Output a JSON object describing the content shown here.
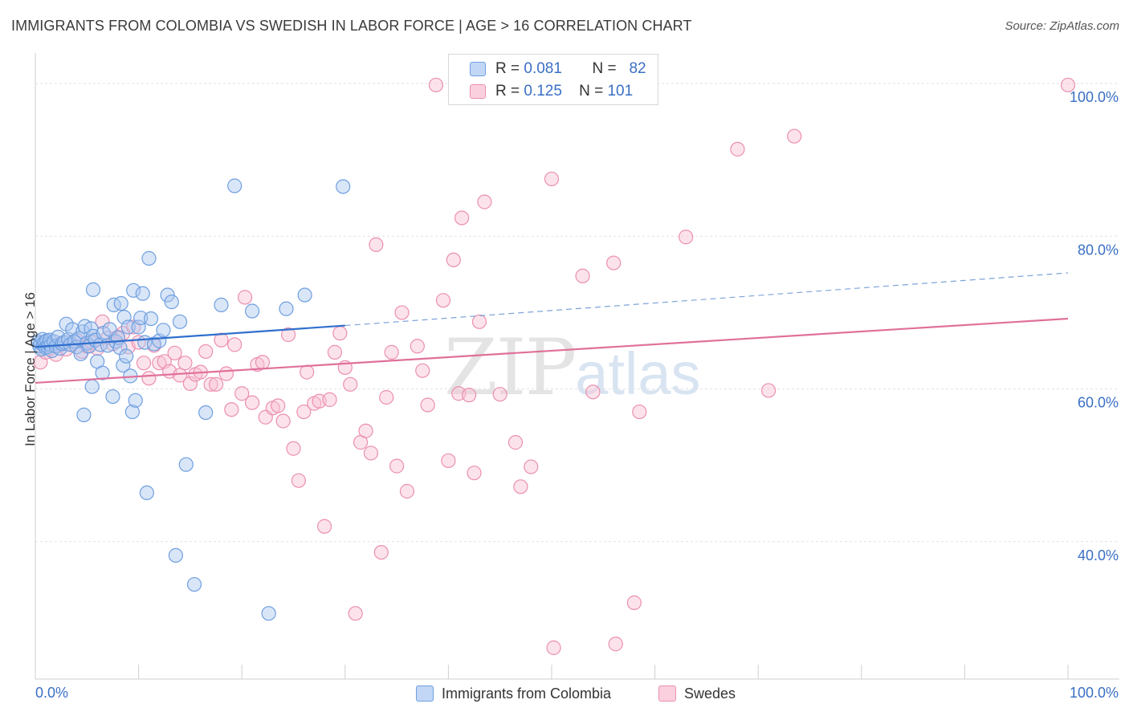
{
  "title": "IMMIGRANTS FROM COLOMBIA VS SWEDISH IN LABOR FORCE | AGE > 16 CORRELATION CHART",
  "source": "Source: ZipAtlas.com",
  "watermark": {
    "zip": "ZIP",
    "atlas": "atlas"
  },
  "legend": {
    "r_label": "R =",
    "n_label": "N =",
    "series": [
      {
        "r": "0.081",
        "n": "82",
        "fill": "#aac8f0",
        "stroke": "#6f9fe0"
      },
      {
        "r": "0.125",
        "n": "101",
        "fill": "#f8c0d2",
        "stroke": "#eb8fb0"
      }
    ]
  },
  "bottom_legend": [
    "Immigrants from Colombia",
    "Swedes"
  ],
  "chart_data": {
    "type": "scatter",
    "xlabel": "",
    "ylabel": "In Labor Force | Age > 16",
    "xlim": [
      0,
      100
    ],
    "ylim": [
      22,
      104
    ],
    "x_tick_labels": [
      "0.0%",
      "100.0%"
    ],
    "y_ticks": [
      40,
      60,
      80,
      100
    ],
    "y_tick_labels": [
      "40.0%",
      "60.0%",
      "80.0%",
      "100.0%"
    ],
    "grid": true,
    "colors": {
      "blue": "#4a80cc",
      "blue_line": "#2f6fcc",
      "pink": "#e07aa0",
      "pink_line": "#e0709a",
      "tick_text": "#3a6fc4"
    },
    "series": [
      {
        "name": "Immigrants from Colombia",
        "color": "#6f9fe0",
        "trend": {
          "x": [
            0,
            30
          ],
          "y": [
            65.5,
            68.3
          ],
          "dashed_to": [
            100,
            75.2
          ]
        },
        "points": [
          [
            0.3,
            66.2
          ],
          [
            0.4,
            65.6
          ],
          [
            0.5,
            66
          ],
          [
            0.6,
            65.2
          ],
          [
            0.7,
            66.5
          ],
          [
            0.8,
            65.8
          ],
          [
            0.9,
            66.1
          ],
          [
            1,
            65.4
          ],
          [
            1.1,
            66.3
          ],
          [
            1.2,
            65.5
          ],
          [
            1.3,
            65.9
          ],
          [
            1.4,
            66.4
          ],
          [
            1.5,
            65.7
          ],
          [
            1.6,
            65
          ],
          [
            1.8,
            66.2
          ],
          [
            2,
            65.6
          ],
          [
            2.2,
            66.8
          ],
          [
            2.4,
            65.3
          ],
          [
            2.6,
            65.9
          ],
          [
            2.8,
            66.1
          ],
          [
            3,
            68.5
          ],
          [
            3.2,
            66.5
          ],
          [
            3.4,
            65.8
          ],
          [
            3.6,
            67.8
          ],
          [
            3.8,
            66.2
          ],
          [
            4,
            65.5
          ],
          [
            4.2,
            66.6
          ],
          [
            4.4,
            64.6
          ],
          [
            4.6,
            67.5
          ],
          [
            4.8,
            68.2
          ],
          [
            5,
            66
          ],
          [
            5.2,
            65.6
          ],
          [
            5.4,
            67.9
          ],
          [
            5.6,
            66.9
          ],
          [
            5.8,
            66.4
          ],
          [
            6,
            63.6
          ],
          [
            6.3,
            65.8
          ],
          [
            6.6,
            67.3
          ],
          [
            5.6,
            73
          ],
          [
            5.5,
            60.3
          ],
          [
            6.5,
            62.1
          ],
          [
            7,
            65.7
          ],
          [
            7.2,
            67.8
          ],
          [
            7.5,
            59
          ],
          [
            7.6,
            71
          ],
          [
            7.8,
            66.2
          ],
          [
            8,
            66.7
          ],
          [
            8.2,
            65.4
          ],
          [
            8.3,
            71.2
          ],
          [
            8.5,
            63.1
          ],
          [
            8.6,
            69.4
          ],
          [
            8.8,
            64.3
          ],
          [
            9,
            68.1
          ],
          [
            9.2,
            61.7
          ],
          [
            9.4,
            57
          ],
          [
            9.5,
            72.9
          ],
          [
            9.7,
            58.5
          ],
          [
            10,
            68.1
          ],
          [
            10.2,
            69.3
          ],
          [
            10.4,
            72.5
          ],
          [
            10.6,
            66.1
          ],
          [
            10.8,
            46.4
          ],
          [
            11,
            77.1
          ],
          [
            11.2,
            69.2
          ],
          [
            11.5,
            65.9
          ],
          [
            12,
            66.3
          ],
          [
            12.4,
            67.7
          ],
          [
            12.8,
            72.3
          ],
          [
            13.2,
            71.4
          ],
          [
            14,
            68.8
          ],
          [
            4.7,
            56.6
          ],
          [
            15.4,
            34.4
          ],
          [
            16.5,
            56.9
          ],
          [
            18,
            71
          ],
          [
            19.3,
            86.6
          ],
          [
            21,
            70.2
          ],
          [
            22.6,
            30.6
          ],
          [
            24.3,
            70.5
          ],
          [
            26.1,
            72.3
          ],
          [
            29.8,
            86.5
          ],
          [
            13.6,
            38.2
          ],
          [
            14.6,
            50.1
          ]
        ]
      },
      {
        "name": "Swedes",
        "color": "#eb8fb0",
        "trend": {
          "x": [
            0,
            100
          ],
          "y": [
            60.8,
            69.2
          ]
        },
        "points": [
          [
            0.5,
            63.5
          ],
          [
            1,
            64.8
          ],
          [
            1.5,
            65.3
          ],
          [
            2,
            64.5
          ],
          [
            2.5,
            66
          ],
          [
            3,
            65.2
          ],
          [
            3.5,
            65.8
          ],
          [
            4,
            66.4
          ],
          [
            4.5,
            64.9
          ],
          [
            5,
            65.6
          ],
          [
            5.5,
            66.1
          ],
          [
            6,
            65.3
          ],
          [
            6.5,
            68.8
          ],
          [
            7,
            66.7
          ],
          [
            7.5,
            65.9
          ],
          [
            8,
            66.8
          ],
          [
            8.5,
            67.3
          ],
          [
            9,
            65.5
          ],
          [
            9.5,
            68.1
          ],
          [
            10,
            66.1
          ],
          [
            10.5,
            63.4
          ],
          [
            11,
            61.4
          ],
          [
            11.5,
            65.7
          ],
          [
            12,
            63.4
          ],
          [
            12.5,
            63.6
          ],
          [
            13,
            62.3
          ],
          [
            13.5,
            64.7
          ],
          [
            14,
            61.8
          ],
          [
            14.5,
            63.4
          ],
          [
            15,
            60.7
          ],
          [
            15.5,
            61.9
          ],
          [
            16,
            62.2
          ],
          [
            16.5,
            64.9
          ],
          [
            17,
            60.6
          ],
          [
            17.5,
            60.6
          ],
          [
            18,
            66.4
          ],
          [
            18.5,
            62
          ],
          [
            19,
            57.3
          ],
          [
            19.3,
            65.8
          ],
          [
            20,
            59.4
          ],
          [
            20.3,
            72
          ],
          [
            21,
            58.2
          ],
          [
            21.5,
            63.2
          ],
          [
            22,
            63.5
          ],
          [
            22.3,
            56.3
          ],
          [
            23,
            57.5
          ],
          [
            23.5,
            57.8
          ],
          [
            24,
            55.8
          ],
          [
            24.5,
            67.1
          ],
          [
            25,
            52.2
          ],
          [
            25.5,
            48
          ],
          [
            26,
            57
          ],
          [
            26.3,
            62.2
          ],
          [
            27,
            58.1
          ],
          [
            27.5,
            58.4
          ],
          [
            28,
            42
          ],
          [
            28.5,
            58.6
          ],
          [
            29,
            64.8
          ],
          [
            29.5,
            67.3
          ],
          [
            30,
            62.8
          ],
          [
            30.5,
            60.6
          ],
          [
            31,
            30.6
          ],
          [
            31.5,
            53
          ],
          [
            32,
            54.5
          ],
          [
            32.5,
            51.6
          ],
          [
            33,
            78.9
          ],
          [
            33.5,
            38.6
          ],
          [
            34,
            58.9
          ],
          [
            34.5,
            64.8
          ],
          [
            35,
            49.9
          ],
          [
            35.5,
            70
          ],
          [
            36,
            46.6
          ],
          [
            37,
            65.6
          ],
          [
            37.5,
            62.4
          ],
          [
            38,
            57.9
          ],
          [
            38.8,
            99.8
          ],
          [
            39.5,
            71.6
          ],
          [
            40,
            50.6
          ],
          [
            40.5,
            76.9
          ],
          [
            41,
            59.4
          ],
          [
            41.3,
            82.4
          ],
          [
            42,
            59.2
          ],
          [
            42.5,
            49
          ],
          [
            43,
            68.8
          ],
          [
            43.5,
            84.5
          ],
          [
            45,
            59.3
          ],
          [
            46.5,
            53
          ],
          [
            47,
            47.2
          ],
          [
            48,
            49.8
          ],
          [
            50,
            87.5
          ],
          [
            50.2,
            26.1
          ],
          [
            53,
            74.8
          ],
          [
            54,
            59.6
          ],
          [
            56,
            76.5
          ],
          [
            56.2,
            26.6
          ],
          [
            58,
            32
          ],
          [
            58.5,
            57
          ],
          [
            63,
            79.9
          ],
          [
            68,
            91.4
          ],
          [
            71,
            59.8
          ],
          [
            73.5,
            93.1
          ],
          [
            100,
            99.8
          ]
        ]
      }
    ]
  }
}
